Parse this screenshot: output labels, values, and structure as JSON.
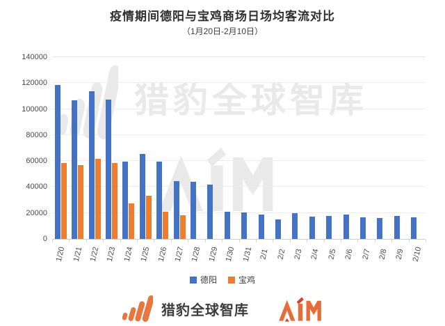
{
  "title": "疫情期间德阳与宝鸡商场日场均客流对比",
  "subtitle": "（1月20日-2月10日）",
  "watermark": {
    "brand_text": "猎豹全球智库",
    "aim_text": "AIM"
  },
  "footer": {
    "brand_text": "猎豹全球智库",
    "aim_text": "AIM"
  },
  "colors": {
    "deyang_blue": "#4472C4",
    "baoji_orange": "#ED7D31",
    "brand_orange": "#E8763F",
    "aim_red_accent": "#D5452A",
    "watermark_gray": "#E9E9E9",
    "axis_text": "#4A4A4A",
    "title_text": "#2F2F2F"
  },
  "chart_data": {
    "type": "bar",
    "title": "疫情期间德阳与宝鸡商场日场均客流对比",
    "subtitle": "（1月20日-2月10日）",
    "categories": [
      "1/20",
      "1/21",
      "1/22",
      "1/23",
      "1/24",
      "1/25",
      "1/26",
      "1/27",
      "1/28",
      "1/29",
      "1/30",
      "1/31",
      "2/1",
      "2/2",
      "2/3",
      "2/4",
      "2/5",
      "2/6",
      "2/7",
      "2/8",
      "2/9",
      "2/10"
    ],
    "series": [
      {
        "name": "德阳",
        "color": "#4472C4",
        "values": [
          118500,
          106500,
          113500,
          107500,
          59500,
          65500,
          59500,
          44500,
          44000,
          42000,
          21000,
          20500,
          19000,
          15000,
          20000,
          17000,
          17500,
          19000,
          16500,
          16000,
          17500,
          16500
        ]
      },
      {
        "name": "宝鸡",
        "color": "#ED7D31",
        "values": [
          58500,
          57000,
          61500,
          58500,
          27500,
          33000,
          21000,
          18500,
          null,
          null,
          null,
          null,
          null,
          null,
          null,
          null,
          null,
          null,
          null,
          null,
          null,
          null
        ]
      }
    ],
    "xlabel": "",
    "ylabel": "",
    "ylim": [
      0,
      140000
    ],
    "ytick_step": 20000,
    "grid": true,
    "legend_position": "bottom",
    "x_label_rotation": -77
  }
}
